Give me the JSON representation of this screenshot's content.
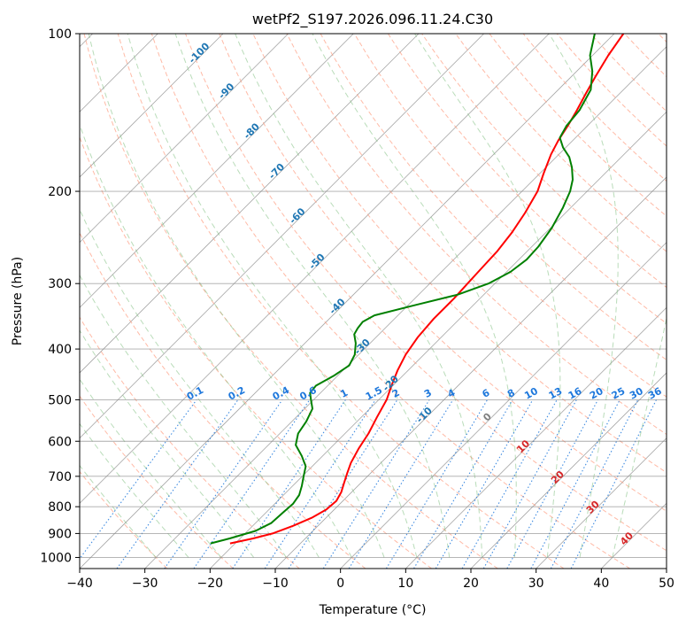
{
  "chart_data": {
    "type": "line",
    "title": "wetPf2_S197.2026.096.11.24.C30",
    "xlabel": "Temperature (°C)",
    "ylabel": "Pressure (hPa)",
    "xlim": [
      -40,
      50
    ],
    "ylim": [
      1050,
      100
    ],
    "y_scale": "log",
    "x_ticks": [
      "−40",
      "−30",
      "−20",
      "−10",
      "0",
      "10",
      "20",
      "30",
      "40",
      "50"
    ],
    "y_ticks": [
      "100",
      "200",
      "300",
      "400",
      "500",
      "600",
      "700",
      "800",
      "900",
      "1000"
    ],
    "grid": true,
    "series": [
      {
        "role": "temperature",
        "color": "#ff0000",
        "points": [
          {
            "p": 940,
            "t": -20.8
          },
          {
            "p": 920,
            "t": -18.0
          },
          {
            "p": 900,
            "t": -15.8
          },
          {
            "p": 870,
            "t": -13.8
          },
          {
            "p": 840,
            "t": -12.2
          },
          {
            "p": 810,
            "t": -11.2
          },
          {
            "p": 780,
            "t": -11.0
          },
          {
            "p": 750,
            "t": -11.6
          },
          {
            "p": 720,
            "t": -12.6
          },
          {
            "p": 690,
            "t": -13.6
          },
          {
            "p": 660,
            "t": -14.6
          },
          {
            "p": 620,
            "t": -15.6
          },
          {
            "p": 580,
            "t": -16.4
          },
          {
            "p": 540,
            "t": -17.6
          },
          {
            "p": 500,
            "t": -18.8
          },
          {
            "p": 470,
            "t": -20.2
          },
          {
            "p": 440,
            "t": -21.6
          },
          {
            "p": 410,
            "t": -22.8
          },
          {
            "p": 380,
            "t": -23.6
          },
          {
            "p": 350,
            "t": -24.0
          },
          {
            "p": 320,
            "t": -24.0
          },
          {
            "p": 300,
            "t": -24.2
          },
          {
            "p": 280,
            "t": -24.4
          },
          {
            "p": 260,
            "t": -24.6
          },
          {
            "p": 240,
            "t": -25.2
          },
          {
            "p": 220,
            "t": -26.2
          },
          {
            "p": 200,
            "t": -27.6
          },
          {
            "p": 185,
            "t": -29.4
          },
          {
            "p": 170,
            "t": -31.2
          },
          {
            "p": 160,
            "t": -32.2
          },
          {
            "p": 150,
            "t": -33.0
          },
          {
            "p": 140,
            "t": -34.0
          },
          {
            "p": 130,
            "t": -35.2
          },
          {
            "p": 120,
            "t": -36.4
          },
          {
            "p": 110,
            "t": -37.6
          },
          {
            "p": 100,
            "t": -38.6
          }
        ]
      },
      {
        "role": "dewpoint",
        "color": "#008000",
        "points": [
          {
            "p": 940,
            "t": -23.8
          },
          {
            "p": 920,
            "t": -21.6
          },
          {
            "p": 890,
            "t": -18.8
          },
          {
            "p": 860,
            "t": -17.6
          },
          {
            "p": 820,
            "t": -17.4
          },
          {
            "p": 790,
            "t": -17.2
          },
          {
            "p": 760,
            "t": -17.6
          },
          {
            "p": 730,
            "t": -18.6
          },
          {
            "p": 700,
            "t": -19.8
          },
          {
            "p": 670,
            "t": -21.0
          },
          {
            "p": 640,
            "t": -23.2
          },
          {
            "p": 610,
            "t": -25.8
          },
          {
            "p": 580,
            "t": -27.2
          },
          {
            "p": 550,
            "t": -27.8
          },
          {
            "p": 520,
            "t": -28.8
          },
          {
            "p": 500,
            "t": -30.4
          },
          {
            "p": 485,
            "t": -31.6
          },
          {
            "p": 470,
            "t": -31.8
          },
          {
            "p": 450,
            "t": -30.6
          },
          {
            "p": 430,
            "t": -29.8
          },
          {
            "p": 410,
            "t": -30.6
          },
          {
            "p": 390,
            "t": -32.2
          },
          {
            "p": 375,
            "t": -33.8
          },
          {
            "p": 365,
            "t": -34.2
          },
          {
            "p": 355,
            "t": -34.4
          },
          {
            "p": 345,
            "t": -33.6
          },
          {
            "p": 330,
            "t": -29.0
          },
          {
            "p": 315,
            "t": -24.0
          },
          {
            "p": 300,
            "t": -21.0
          },
          {
            "p": 285,
            "t": -19.4
          },
          {
            "p": 270,
            "t": -18.8
          },
          {
            "p": 255,
            "t": -19.0
          },
          {
            "p": 235,
            "t": -19.8
          },
          {
            "p": 215,
            "t": -21.2
          },
          {
            "p": 200,
            "t": -22.6
          },
          {
            "p": 190,
            "t": -24.0
          },
          {
            "p": 180,
            "t": -26.0
          },
          {
            "p": 172,
            "t": -28.0
          },
          {
            "p": 165,
            "t": -30.4
          },
          {
            "p": 158,
            "t": -32.4
          },
          {
            "p": 150,
            "t": -33.2
          },
          {
            "p": 140,
            "t": -33.6
          },
          {
            "p": 128,
            "t": -35.0
          },
          {
            "p": 118,
            "t": -37.6
          },
          {
            "p": 110,
            "t": -40.4
          },
          {
            "p": 100,
            "t": -43.0
          }
        ]
      }
    ],
    "background_lines": {
      "isotherms_every_c": 10,
      "dry_adiabat_color": "#ff9d80",
      "moist_adiabat_color": "#7fbf7f",
      "mixing_ratio_color": "#1e78dc",
      "isotherm_color": "#888888",
      "isobar_color": "#888888"
    },
    "annotations": {
      "isotherm_labels": [
        {
          "text": "-100",
          "t": -100,
          "p": 110
        },
        {
          "text": "-90",
          "t": -90,
          "p": 130
        },
        {
          "text": "-80",
          "t": -80,
          "p": 155
        },
        {
          "text": "-70",
          "t": -70,
          "p": 185
        },
        {
          "text": "-60",
          "t": -60,
          "p": 225
        },
        {
          "text": "-50",
          "t": -50,
          "p": 275
        },
        {
          "text": "-40",
          "t": -40,
          "p": 335
        },
        {
          "text": "-30",
          "t": -30,
          "p": 400
        },
        {
          "text": "-20",
          "t": -20,
          "p": 470
        },
        {
          "text": "-10",
          "t": -10,
          "p": 540
        }
      ],
      "positive_isotherm_labels": [
        {
          "text": "0",
          "t": 0,
          "p": 545
        },
        {
          "text": "10",
          "t": 10,
          "p": 620
        },
        {
          "text": "20",
          "t": 20,
          "p": 710
        },
        {
          "text": "30",
          "t": 30,
          "p": 810
        },
        {
          "text": "40",
          "t": 40,
          "p": 930
        }
      ],
      "mixing_ratio_labels": [
        "0.1",
        "0.2",
        "0.4",
        "0.6",
        "1",
        "1.5",
        "2",
        "3",
        "4",
        "6",
        "8",
        "10",
        "13",
        "16",
        "20",
        "25",
        "30",
        "36"
      ]
    }
  }
}
